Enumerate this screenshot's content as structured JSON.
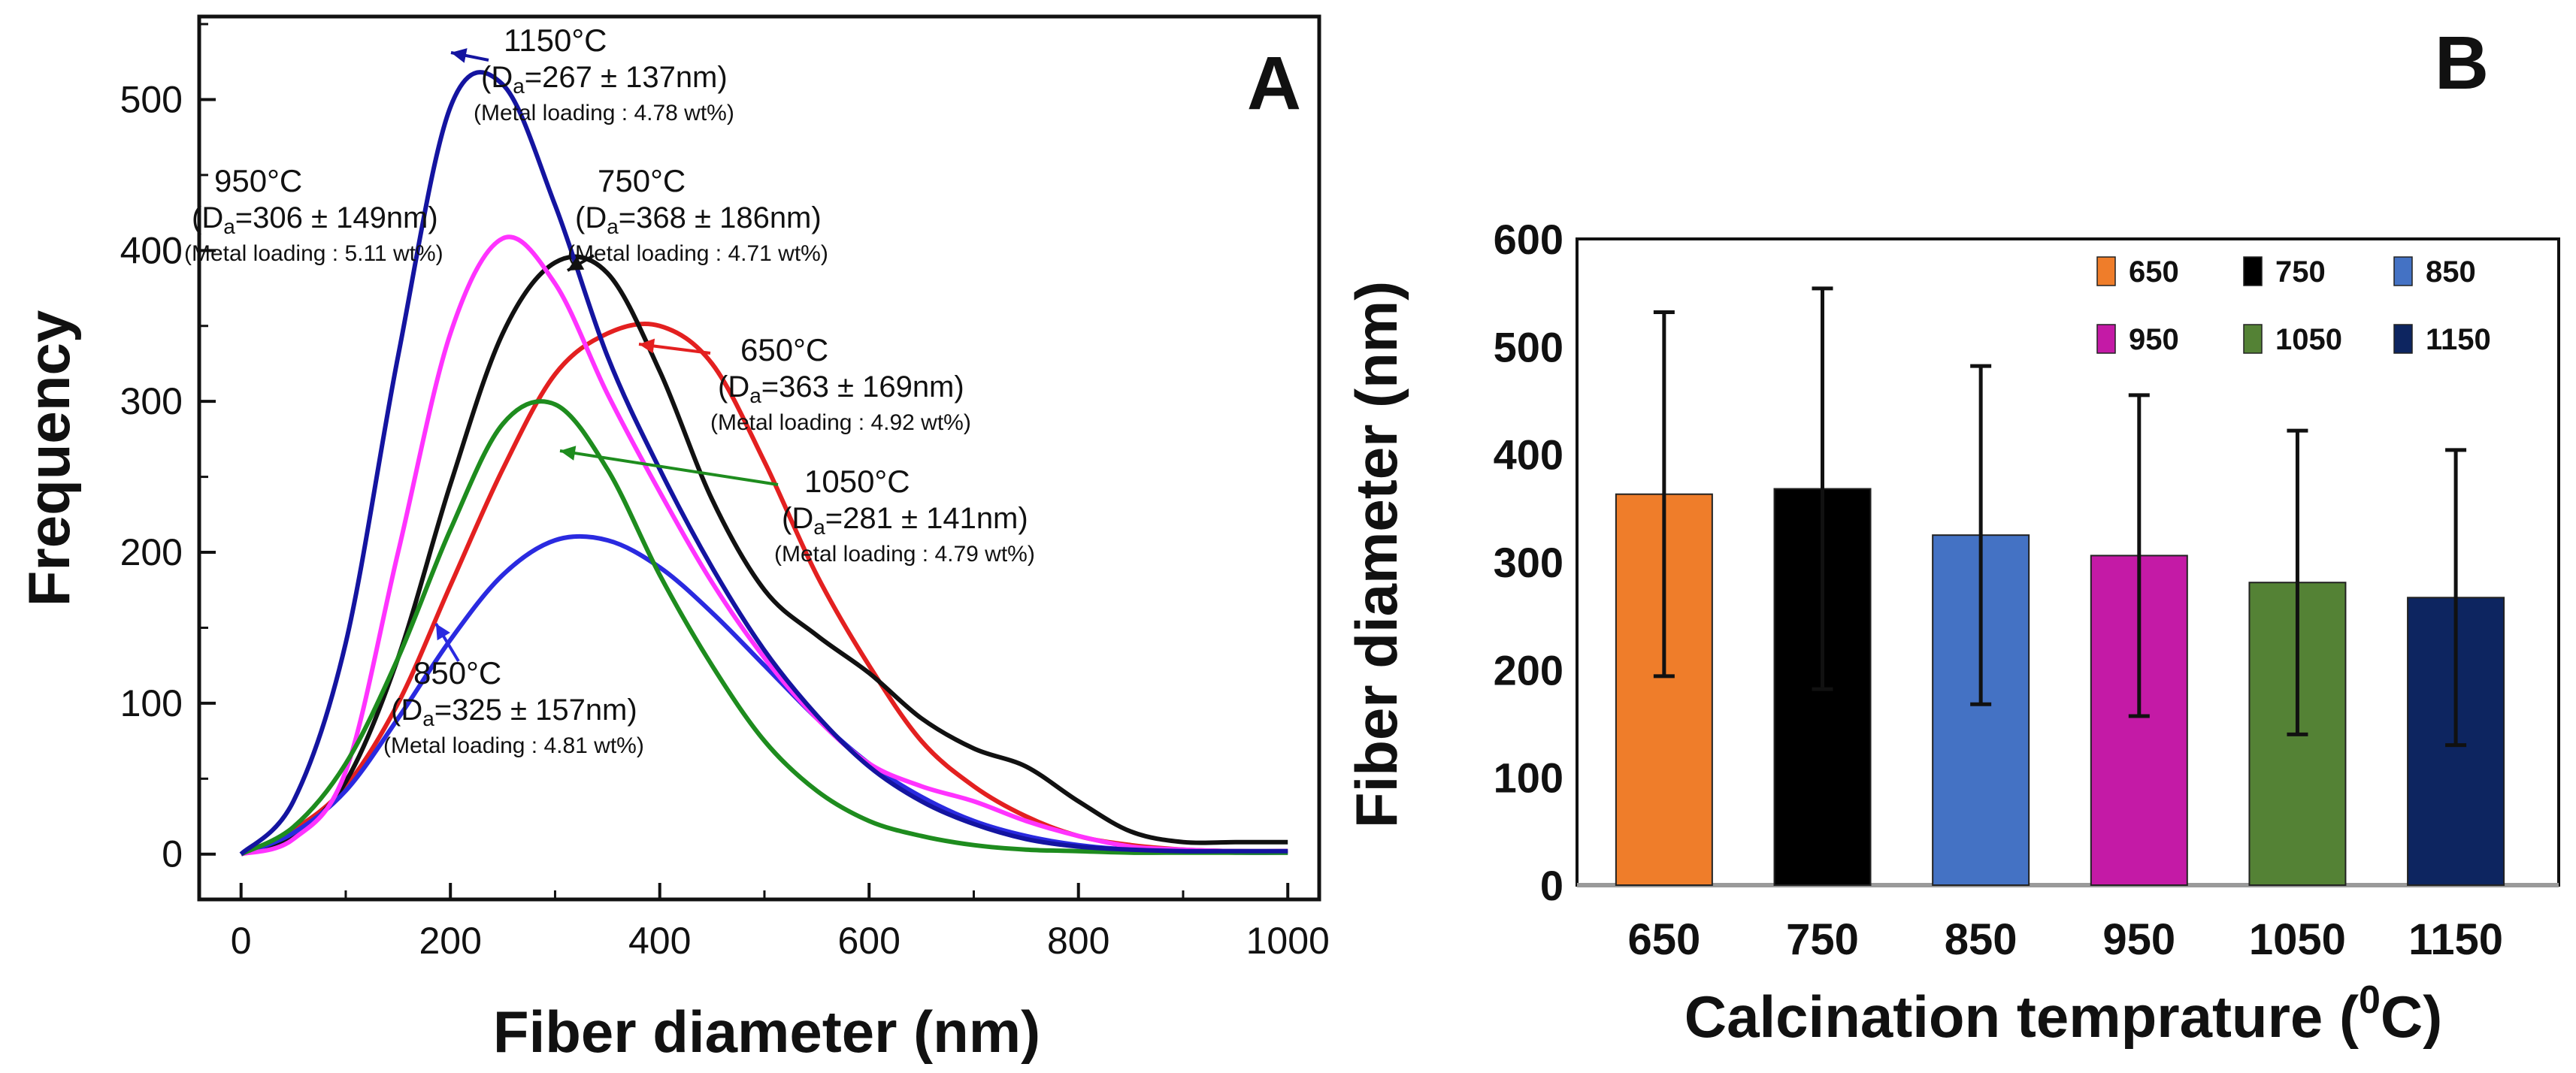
{
  "chart_data": [
    {
      "panel_label": "A",
      "type": "line",
      "xlabel": "Fiber diameter (nm)",
      "ylabel": "Frequency",
      "xlim": [
        -40,
        1030
      ],
      "ylim": [
        -30,
        555
      ],
      "xticks": [
        "0",
        "200",
        "400",
        "600",
        "800",
        "1000"
      ],
      "yticks": [
        "0",
        "100",
        "200",
        "300",
        "400",
        "500"
      ],
      "series": [
        {
          "name": "650°C",
          "color": "#e32020",
          "x": [
            0,
            50,
            100,
            150,
            200,
            250,
            300,
            350,
            400,
            450,
            500,
            550,
            600,
            650,
            700,
            750,
            800,
            850,
            900,
            950,
            1000
          ],
          "y": [
            0,
            16,
            45,
            100,
            178,
            255,
            318,
            345,
            350,
            325,
            260,
            185,
            125,
            75,
            45,
            25,
            12,
            6,
            3,
            2,
            2
          ],
          "annotation": {
            "temp": "650°C",
            "da": "(D",
            "da_sub": "a",
            "da_rest": "=363 ± 169nm)",
            "loading": "(Metal loading : 4.92 wt%)"
          }
        },
        {
          "name": "750°C",
          "color": "#111111",
          "x": [
            0,
            50,
            100,
            150,
            200,
            250,
            300,
            350,
            400,
            450,
            500,
            550,
            600,
            650,
            700,
            750,
            800,
            850,
            900,
            950,
            1000
          ],
          "y": [
            0,
            12,
            48,
            130,
            245,
            345,
            392,
            385,
            320,
            235,
            175,
            145,
            120,
            90,
            70,
            58,
            35,
            15,
            8,
            8,
            8
          ],
          "annotation": {
            "temp": "750°C",
            "da": "(D",
            "da_sub": "a",
            "da_rest": "=368 ± 186nm)",
            "loading": "(Metal loading : 4.71 wt%)"
          }
        },
        {
          "name": "850°C",
          "color": "#2a2ae0",
          "x": [
            0,
            50,
            100,
            150,
            200,
            250,
            300,
            350,
            400,
            450,
            500,
            550,
            600,
            650,
            700,
            750,
            800,
            850,
            900,
            950,
            1000
          ],
          "y": [
            0,
            14,
            42,
            90,
            142,
            185,
            208,
            208,
            190,
            160,
            125,
            90,
            60,
            38,
            22,
            12,
            6,
            3,
            2,
            1,
            1
          ],
          "annotation": {
            "temp": "850°C",
            "da": "(D",
            "da_sub": "a",
            "da_rest": "=325 ± 157nm)",
            "loading": "(Metal loading : 4.81 wt%)"
          }
        },
        {
          "name": "950°C",
          "color": "#ff33ff",
          "x": [
            0,
            50,
            100,
            150,
            200,
            250,
            300,
            350,
            400,
            450,
            500,
            550,
            600,
            650,
            700,
            750,
            800,
            850,
            900,
            950,
            1000
          ],
          "y": [
            0,
            10,
            55,
            200,
            345,
            408,
            378,
            305,
            240,
            180,
            130,
            90,
            60,
            45,
            35,
            22,
            12,
            5,
            3,
            2,
            2
          ],
          "annotation": {
            "temp": "950°C",
            "da": "(D",
            "da_sub": "a",
            "da_rest": "=306 ± 149nm)",
            "loading": "(Metal loading : 5.11 wt%)"
          }
        },
        {
          "name": "1050°C",
          "color": "#1e8c1e",
          "x": [
            0,
            50,
            100,
            150,
            200,
            250,
            300,
            350,
            400,
            450,
            500,
            550,
            600,
            650,
            700,
            750,
            800,
            850,
            900,
            950,
            1000
          ],
          "y": [
            0,
            18,
            60,
            130,
            215,
            285,
            298,
            255,
            185,
            125,
            75,
            42,
            22,
            12,
            6,
            3,
            2,
            1,
            1,
            1,
            1
          ],
          "annotation": {
            "temp": "1050°C",
            "da": "(D",
            "da_sub": "a",
            "da_rest": "=281 ± 141nm)",
            "loading": "(Metal loading : 4.79 wt%)"
          }
        },
        {
          "name": "1150°C",
          "color": "#1414a0",
          "x": [
            0,
            50,
            100,
            150,
            200,
            250,
            300,
            350,
            400,
            450,
            500,
            550,
            600,
            650,
            700,
            750,
            800,
            850,
            900,
            950,
            1000
          ],
          "y": [
            0,
            35,
            140,
            330,
            495,
            510,
            430,
            330,
            255,
            190,
            135,
            92,
            58,
            35,
            20,
            10,
            5,
            3,
            2,
            2,
            2
          ],
          "annotation": {
            "temp": "1150°C",
            "da": "(D",
            "da_sub": "a",
            "da_rest": "=267 ± 137nm)",
            "loading": "(Metal loading : 4.78 wt%)"
          }
        }
      ]
    },
    {
      "panel_label": "B",
      "type": "bar",
      "xlabel": "Calcination temprature (",
      "xlabel_sup": "0",
      "xlabel_end": "C)",
      "ylabel": "Fiber diameter (nm)",
      "ylim": [
        0,
        600
      ],
      "yticks": [
        "0",
        "100",
        "200",
        "300",
        "400",
        "500",
        "600"
      ],
      "categories": [
        "650",
        "750",
        "850",
        "950",
        "1050",
        "1150"
      ],
      "values": [
        363,
        368,
        325,
        306,
        281,
        267
      ],
      "errors": [
        169,
        186,
        157,
        149,
        141,
        137
      ],
      "colors": [
        "#ef7d2a",
        "#000000",
        "#4472c4",
        "#c41aa6",
        "#548235",
        "#0d2560"
      ],
      "legend": [
        "650",
        "750",
        "850",
        "950",
        "1050",
        "1150"
      ]
    }
  ]
}
